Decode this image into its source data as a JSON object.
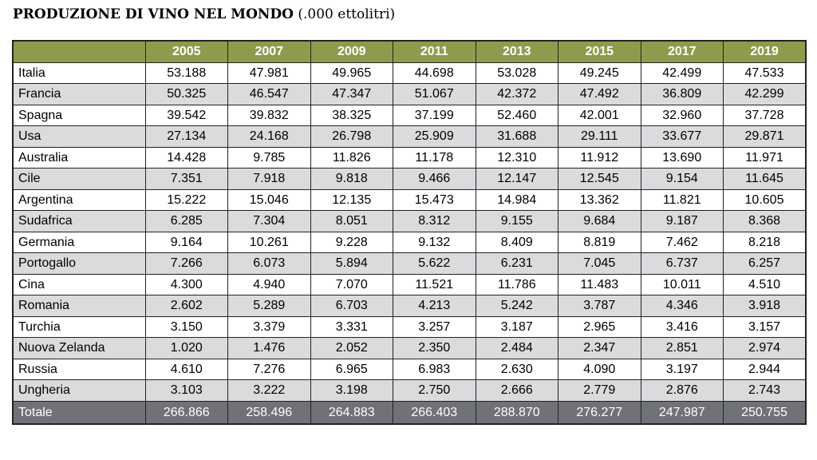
{
  "title": {
    "main": "PRODUZIONE DI VINO NEL MONDO",
    "unit": "(.000 ettolitri)"
  },
  "colors": {
    "header_bg": "#8f9b4c",
    "alt_row_bg": "#d9dbdd",
    "total_row_bg": "#707278"
  },
  "table": {
    "header_first": "",
    "years": [
      "2005",
      "2007",
      "2009",
      "2011",
      "2013",
      "2015",
      "2017",
      "2019"
    ],
    "rows": [
      {
        "country": "Italia",
        "values": [
          "53.188",
          "47.981",
          "49.965",
          "44.698",
          "53.028",
          "49.245",
          "42.499",
          "47.533"
        ]
      },
      {
        "country": "Francia",
        "values": [
          "50.325",
          "46.547",
          "47.347",
          "51.067",
          "42.372",
          "47.492",
          "36.809",
          "42.299"
        ]
      },
      {
        "country": "Spagna",
        "values": [
          "39.542",
          "39.832",
          "38.325",
          "37.199",
          "52.460",
          "42.001",
          "32.960",
          "37.728"
        ]
      },
      {
        "country": "Usa",
        "values": [
          "27.134",
          "24.168",
          "26.798",
          "25.909",
          "31.688",
          "29.111",
          "33.677",
          "29.871"
        ]
      },
      {
        "country": "Australia",
        "values": [
          "14.428",
          "9.785",
          "11.826",
          "11.178",
          "12.310",
          "11.912",
          "13.690",
          "11.971"
        ]
      },
      {
        "country": "Cile",
        "values": [
          "7.351",
          "7.918",
          "9.818",
          "9.466",
          "12.147",
          "12.545",
          "9.154",
          "11.645"
        ]
      },
      {
        "country": "Argentina",
        "values": [
          "15.222",
          "15.046",
          "12.135",
          "15.473",
          "14.984",
          "13.362",
          "11.821",
          "10.605"
        ]
      },
      {
        "country": "Sudafrica",
        "values": [
          "6.285",
          "7.304",
          "8.051",
          "8.312",
          "9.155",
          "9.684",
          "9.187",
          "8.368"
        ]
      },
      {
        "country": "Germania",
        "values": [
          "9.164",
          "10.261",
          "9.228",
          "9.132",
          "8.409",
          "8.819",
          "7.462",
          "8.218"
        ]
      },
      {
        "country": "Portogallo",
        "values": [
          "7.266",
          "6.073",
          "5.894",
          "5.622",
          "6.231",
          "7.045",
          "6.737",
          "6.257"
        ]
      },
      {
        "country": "Cina",
        "values": [
          "4.300",
          "4.940",
          "7.070",
          "11.521",
          "11.786",
          "11.483",
          "10.011",
          "4.510"
        ]
      },
      {
        "country": "Romania",
        "values": [
          "2.602",
          "5.289",
          "6.703",
          "4.213",
          "5.242",
          "3.787",
          "4.346",
          "3.918"
        ]
      },
      {
        "country": "Turchia",
        "values": [
          "3.150",
          "3.379",
          "3.331",
          "3.257",
          "3.187",
          "2.965",
          "3.416",
          "3.157"
        ]
      },
      {
        "country": "Nuova Zelanda",
        "values": [
          "1.020",
          "1.476",
          "2.052",
          "2.350",
          "2.484",
          "2.347",
          "2.851",
          "2.974"
        ]
      },
      {
        "country": "Russia",
        "values": [
          "4.610",
          "7.276",
          "6.965",
          "6.983",
          "2.630",
          "4.090",
          "3.197",
          "2.944"
        ]
      },
      {
        "country": "Ungheria",
        "values": [
          "3.103",
          "3.222",
          "3.198",
          "2.750",
          "2.666",
          "2.779",
          "2.876",
          "2.743"
        ]
      }
    ],
    "total": {
      "label": "Totale",
      "values": [
        "266.866",
        "258.496",
        "264.883",
        "266.403",
        "288.870",
        "276.277",
        "247.987",
        "250.755"
      ]
    }
  }
}
